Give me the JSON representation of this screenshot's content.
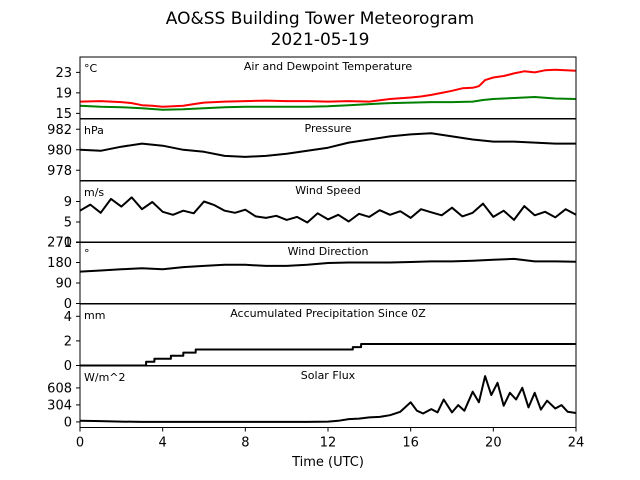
{
  "chart_data": {
    "title": "AO&SS Building Tower Meteorogram",
    "subtitle": "2021-05-19",
    "type": "line",
    "xlabel": "Time (UTC)",
    "xlim": [
      0,
      24
    ],
    "xticks": [
      "0",
      "4",
      "8",
      "12",
      "16",
      "20",
      "24"
    ],
    "panels": [
      {
        "title": "Air and Dewpoint Temperature",
        "unit": "°C",
        "ylim": [
          14,
          26
        ],
        "yticks": [
          15,
          19,
          23
        ],
        "series": [
          {
            "color": "#ff0000",
            "x": [
              0,
              1,
              2,
              2.5,
              3,
              3.5,
              4,
              5,
              5.5,
              6,
              7,
              8,
              9,
              10,
              11,
              12,
              13,
              14,
              15,
              16,
              16.5,
              17,
              17.5,
              18,
              18.5,
              19,
              19.3,
              19.6,
              20,
              20.5,
              21,
              21.5,
              22,
              22.5,
              23,
              24
            ],
            "y": [
              17.3,
              17.4,
              17.2,
              17.0,
              16.6,
              16.5,
              16.3,
              16.5,
              16.8,
              17.1,
              17.3,
              17.4,
              17.5,
              17.4,
              17.4,
              17.3,
              17.4,
              17.3,
              17.8,
              18.1,
              18.3,
              18.6,
              19.0,
              19.4,
              19.9,
              20.0,
              20.3,
              21.5,
              22.0,
              22.3,
              22.8,
              23.2,
              23.0,
              23.4,
              23.5,
              23.3
            ]
          },
          {
            "color": "#008000",
            "x": [
              0,
              1,
              2,
              3,
              4,
              5,
              6,
              7,
              8,
              9,
              10,
              11,
              12,
              13,
              14,
              15,
              16,
              17,
              18,
              19,
              19.5,
              20,
              21,
              22,
              23,
              24
            ],
            "y": [
              16.5,
              16.3,
              16.2,
              16.0,
              15.7,
              15.8,
              16.0,
              16.2,
              16.3,
              16.3,
              16.3,
              16.3,
              16.4,
              16.6,
              16.8,
              17.0,
              17.1,
              17.2,
              17.2,
              17.3,
              17.6,
              17.8,
              18.0,
              18.2,
              17.9,
              17.8
            ]
          }
        ]
      },
      {
        "title": "Pressure",
        "unit": "hPa",
        "ylim": [
          977,
          983
        ],
        "yticks": [
          978,
          980,
          982
        ],
        "series": [
          {
            "color": "#000000",
            "x": [
              0,
              1,
              2,
              3,
              4,
              5,
              6,
              7,
              8,
              9,
              10,
              11,
              12,
              13,
              14,
              15,
              16,
              17,
              18,
              19,
              20,
              21,
              22,
              23,
              24
            ],
            "y": [
              980.0,
              979.9,
              980.3,
              980.6,
              980.4,
              980.0,
              979.8,
              979.4,
              979.3,
              979.4,
              979.6,
              979.9,
              980.2,
              980.7,
              981.0,
              981.3,
              981.5,
              981.6,
              981.3,
              981.0,
              980.8,
              980.8,
              980.7,
              980.6,
              980.6
            ]
          }
        ]
      },
      {
        "title": "Wind Speed",
        "unit": "m/s",
        "ylim": [
          1,
          13
        ],
        "yticks": [
          1,
          5,
          9
        ],
        "series": [
          {
            "color": "#000000",
            "x": [
              0,
              0.5,
              1,
              1.5,
              2,
              2.5,
              3,
              3.5,
              4,
              4.5,
              5,
              5.5,
              6,
              6.5,
              7,
              7.5,
              8,
              8.5,
              9,
              9.5,
              10,
              10.5,
              11,
              11.5,
              12,
              12.5,
              13,
              13.5,
              14,
              14.5,
              15,
              15.5,
              16,
              16.5,
              17,
              17.5,
              18,
              18.5,
              19,
              19.5,
              20,
              20.5,
              21,
              21.5,
              22,
              22.5,
              23,
              23.5,
              24
            ],
            "y": [
              7.2,
              8.4,
              6.8,
              9.5,
              8.0,
              9.8,
              7.5,
              8.9,
              7.0,
              6.4,
              7.2,
              6.7,
              9.0,
              8.3,
              7.2,
              6.8,
              7.4,
              6.1,
              5.8,
              6.2,
              5.4,
              6.0,
              4.9,
              6.7,
              5.5,
              6.4,
              5.1,
              6.6,
              6.0,
              7.3,
              6.4,
              7.1,
              5.8,
              7.5,
              6.9,
              6.3,
              7.8,
              6.1,
              6.8,
              8.6,
              6.0,
              7.2,
              5.4,
              8.1,
              6.3,
              7.0,
              5.9,
              7.5,
              6.4
            ]
          }
        ]
      },
      {
        "title": "Wind Direction",
        "unit": "°",
        "ylim": [
          0,
          270
        ],
        "yticks": [
          0,
          90,
          180,
          270
        ],
        "series": [
          {
            "color": "#000000",
            "x": [
              0,
              1,
              2,
              3,
              4,
              5,
              6,
              7,
              8,
              9,
              10,
              11,
              12,
              13,
              14,
              15,
              16,
              17,
              18,
              19,
              20,
              21,
              22,
              23,
              24
            ],
            "y": [
              140,
              145,
              150,
              155,
              150,
              160,
              165,
              170,
              170,
              165,
              165,
              170,
              178,
              180,
              180,
              180,
              182,
              185,
              185,
              188,
              192,
              196,
              185,
              185,
              183
            ]
          }
        ]
      },
      {
        "title": "Accumulated Precipitation Since 0Z",
        "unit": "mm",
        "ylim": [
          0,
          5
        ],
        "yticks": [
          0,
          2,
          4
        ],
        "series": [
          {
            "color": "#000000",
            "x": [
              0,
              3.2,
              3.2,
              3.6,
              3.6,
              4.4,
              4.4,
              5.0,
              5.0,
              5.6,
              5.6,
              13.2,
              13.2,
              13.6,
              13.6,
              24
            ],
            "y": [
              0,
              0,
              0.3,
              0.3,
              0.55,
              0.55,
              0.8,
              0.8,
              1.05,
              1.05,
              1.3,
              1.3,
              1.5,
              1.5,
              1.75,
              1.75
            ]
          }
        ]
      },
      {
        "title": "Solar Flux",
        "unit": "W/m^2",
        "ylim": [
          -100,
          1000
        ],
        "yticks": [
          0,
          304,
          608
        ],
        "series": [
          {
            "color": "#000000",
            "x": [
              0,
              1,
              2,
              3,
              4,
              5,
              6,
              7,
              8,
              9,
              10,
              11,
              12,
              12.5,
              13,
              13.5,
              14,
              14.5,
              15,
              15.5,
              16,
              16.3,
              16.6,
              17,
              17.3,
              17.6,
              18,
              18.3,
              18.6,
              19,
              19.3,
              19.6,
              19.9,
              20.2,
              20.5,
              20.8,
              21.1,
              21.4,
              21.7,
              22,
              22.3,
              22.6,
              23,
              23.3,
              23.6,
              24
            ],
            "y": [
              20,
              15,
              5,
              0,
              0,
              0,
              0,
              0,
              0,
              0,
              0,
              0,
              5,
              20,
              50,
              60,
              80,
              90,
              120,
              180,
              350,
              200,
              150,
              230,
              170,
              400,
              170,
              300,
              200,
              540,
              350,
              820,
              480,
              700,
              290,
              520,
              400,
              610,
              260,
              520,
              220,
              380,
              240,
              300,
              180,
              160
            ]
          }
        ]
      }
    ]
  }
}
